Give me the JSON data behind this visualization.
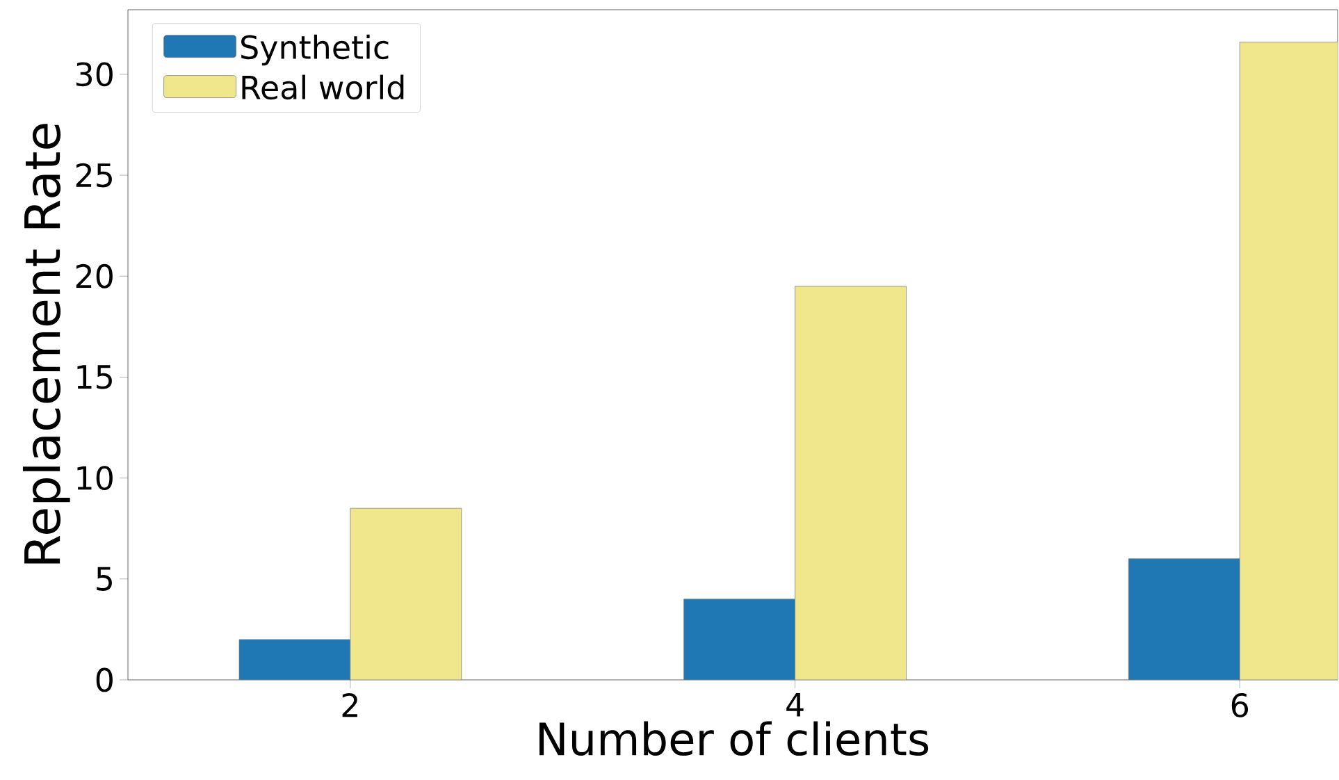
{
  "chart_data": {
    "type": "bar",
    "xlabel": "Number of clients",
    "ylabel": "Replacement Rate",
    "categories": [
      "2",
      "4",
      "6"
    ],
    "series": [
      {
        "name": "Synthetic",
        "color": "#1f77b4",
        "values": [
          2,
          4,
          6
        ]
      },
      {
        "name": "Real world",
        "color": "#f0e68c",
        "values": [
          8.5,
          19.5,
          31.6
        ]
      }
    ],
    "ylim": [
      0,
      33.2
    ],
    "yticks": [
      0,
      5,
      10,
      15,
      20,
      25,
      30
    ],
    "legend": "top left"
  }
}
